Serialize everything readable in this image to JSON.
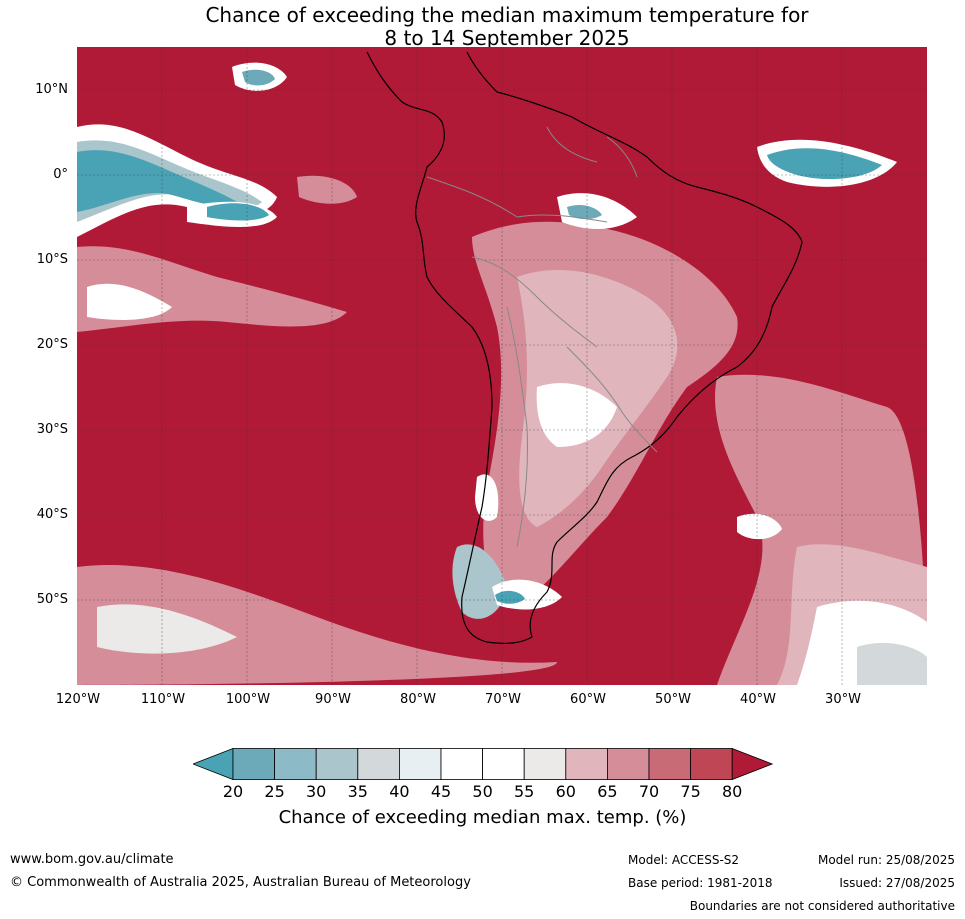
{
  "title_line1": "Chance of exceeding the median maximum temperature for",
  "title_line2": "8 to 14 September 2025",
  "lat_labels": [
    "10°N",
    "0°",
    "10°S",
    "20°S",
    "30°S",
    "40°S",
    "50°S"
  ],
  "lon_labels": [
    "120°W",
    "110°W",
    "100°W",
    "90°W",
    "80°W",
    "70°W",
    "60°W",
    "50°W",
    "40°W",
    "30°W"
  ],
  "colorbar": {
    "ticks": [
      "20",
      "25",
      "30",
      "35",
      "40",
      "45",
      "50",
      "55",
      "60",
      "65",
      "70",
      "75",
      "80"
    ],
    "colors": [
      "#4aa3b5",
      "#6caab9",
      "#8cbac6",
      "#aac5cb",
      "#d3d8db",
      "#e8eff2",
      "#ffffff",
      "#ffffff",
      "#ebeae8",
      "#e0b6bc",
      "#d58e99",
      "#c86b77",
      "#bf4655",
      "#b01a37"
    ],
    "label": "Chance of exceeding median max. temp. (%)"
  },
  "footer": {
    "website": "www.bom.gov.au/climate",
    "copyright": "© Commonwealth of Australia 2025, Australian Bureau of Meteorology",
    "model": "Model: ACCESS-S2",
    "base_period": "Base period: 1981-2018",
    "model_run": "Model run: 25/08/2025",
    "issued": "Issued: 27/08/2025",
    "disclaimer": "Boundaries are not considered authoritative"
  }
}
